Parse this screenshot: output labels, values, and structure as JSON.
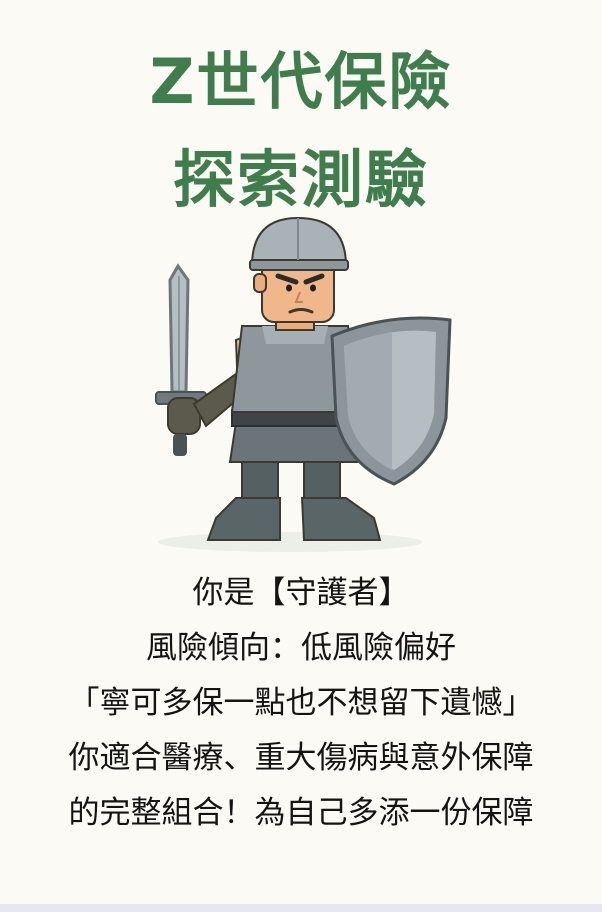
{
  "title": {
    "line1": "Z世代保險",
    "line2": "探索測驗"
  },
  "hero": {
    "icon": "guardian-knight-illustration",
    "colors": {
      "armor": "#8e979c",
      "shield": "#9aa3a9",
      "skin": "#f0b88a",
      "dark": "#4a4f4a"
    }
  },
  "result": {
    "line1": "你是【守護者】",
    "line2": "風險傾向：低風險偏好",
    "line3": "「寧可多保一點也不想留下遺憾」",
    "line4": "你適合醫療、重大傷病與意外保障",
    "line5": "的完整組合！為自己多添一份保障"
  },
  "colors": {
    "title": "#3f7d4d",
    "text": "#141414",
    "background": "#fbfaf5"
  }
}
